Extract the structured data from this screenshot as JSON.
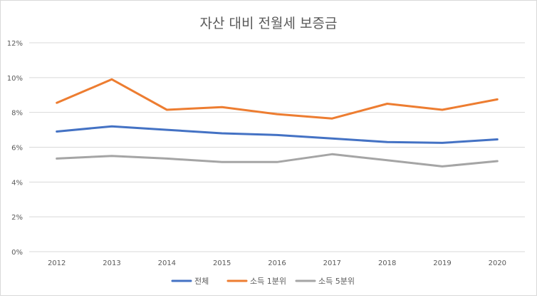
{
  "chart_data": {
    "type": "line",
    "title": "자산 대비 전월세 보증금",
    "xlabel": "",
    "ylabel": "",
    "categories": [
      "2012",
      "2013",
      "2014",
      "2015",
      "2016",
      "2017",
      "2018",
      "2019",
      "2020"
    ],
    "ylim": [
      0,
      12
    ],
    "y_ticks": [
      "0%",
      "2%",
      "4%",
      "6%",
      "8%",
      "10%",
      "12%"
    ],
    "grid": true,
    "legend_position": "bottom",
    "series": [
      {
        "name": "전체",
        "color": "#4472c4",
        "values": [
          6.9,
          7.2,
          7.0,
          6.8,
          6.7,
          6.5,
          6.3,
          6.25,
          6.45
        ]
      },
      {
        "name": "소득 1분위",
        "color": "#ed7d31",
        "values": [
          8.55,
          9.9,
          8.15,
          8.3,
          7.9,
          7.65,
          8.5,
          8.15,
          8.75
        ]
      },
      {
        "name": "소득 5분위",
        "color": "#a5a5a5",
        "values": [
          5.35,
          5.5,
          5.35,
          5.15,
          5.15,
          5.6,
          5.25,
          4.9,
          5.2
        ]
      }
    ]
  }
}
